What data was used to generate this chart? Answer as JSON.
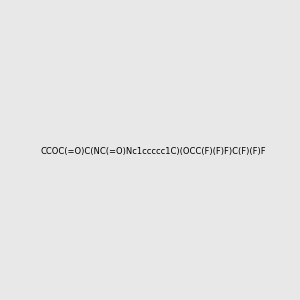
{
  "smiles": "CCOC(=O)C(NC(=O)Nc1ccccc1C)(OCC(F)(F)F)C(F)(F)F",
  "title": "",
  "bg_color": "#e8e8e8",
  "figsize": [
    3.0,
    3.0
  ],
  "dpi": 100
}
